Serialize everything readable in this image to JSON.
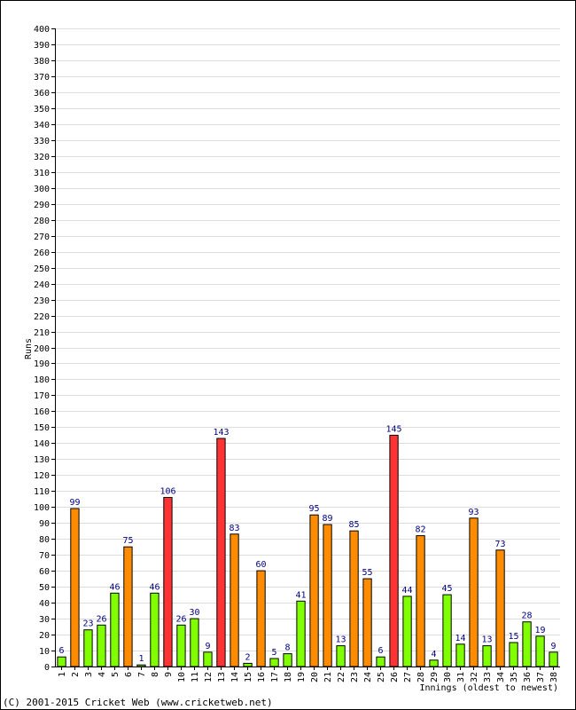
{
  "chart_data": {
    "type": "bar",
    "xlabel": "Innings (oldest to newest)",
    "ylabel": "Runs",
    "ylim": [
      0,
      400
    ],
    "ytick_step": 10,
    "grid": true,
    "categories": [
      "1",
      "2",
      "3",
      "4",
      "5",
      "6",
      "7",
      "8",
      "9",
      "10",
      "11",
      "12",
      "13",
      "14",
      "15",
      "16",
      "17",
      "18",
      "19",
      "20",
      "21",
      "22",
      "23",
      "24",
      "25",
      "26",
      "27",
      "28",
      "29",
      "30",
      "31",
      "32",
      "33",
      "34",
      "35",
      "36",
      "37",
      "38"
    ],
    "values": [
      6,
      99,
      23,
      26,
      46,
      75,
      1,
      46,
      106,
      26,
      30,
      9,
      143,
      83,
      2,
      60,
      5,
      8,
      41,
      95,
      89,
      13,
      85,
      55,
      6,
      145,
      44,
      82,
      4,
      45,
      14,
      93,
      13,
      73,
      15,
      28,
      19,
      9
    ],
    "bar_colors": {
      "under_50": "#80ff00",
      "fifty": "#ff8c00",
      "hundred": "#ff3333"
    }
  },
  "footer": {
    "copyright": "(C) 2001-2015 Cricket Web (www.cricketweb.net)"
  }
}
